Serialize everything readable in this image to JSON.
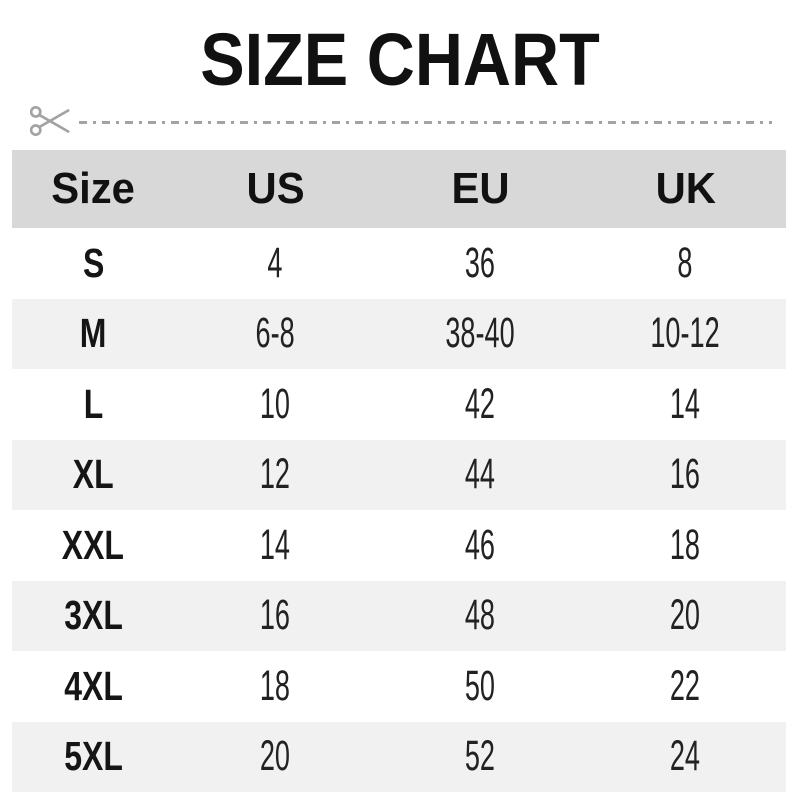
{
  "title": "SIZE CHART",
  "icons": {
    "scissors": "scissors-icon"
  },
  "colors": {
    "header_bg": "#d8d8d8",
    "stripe_bg": "#f1f1f1",
    "cut_line_gray": "#a3a3a3",
    "title_text": "#111111",
    "body_text": "#222222"
  },
  "chart_data": {
    "type": "table",
    "title": "SIZE CHART",
    "columns": [
      "Size",
      "US",
      "EU",
      "UK"
    ],
    "rows": [
      [
        "S",
        "4",
        "36",
        "8"
      ],
      [
        "M",
        "6-8",
        "38-40",
        "10-12"
      ],
      [
        "L",
        "10",
        "42",
        "14"
      ],
      [
        "XL",
        "12",
        "44",
        "16"
      ],
      [
        "XXL",
        "14",
        "46",
        "18"
      ],
      [
        "3XL",
        "16",
        "48",
        "20"
      ],
      [
        "4XL",
        "18",
        "50",
        "22"
      ],
      [
        "5XL",
        "20",
        "52",
        "24"
      ]
    ]
  }
}
